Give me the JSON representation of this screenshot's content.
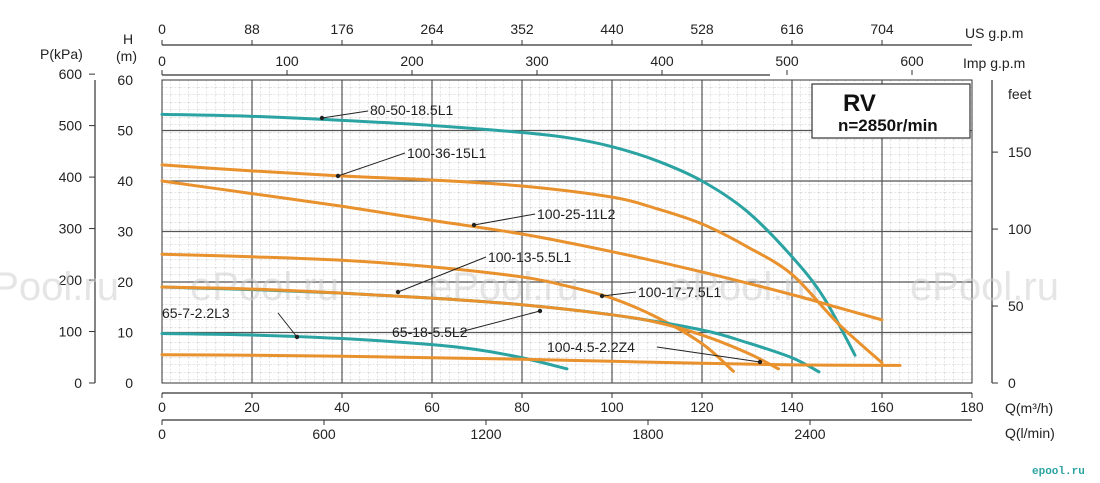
{
  "chart_data": {
    "type": "line",
    "title": "RV",
    "subtitle": "n=2850r/min",
    "x_axes": {
      "bottom_main": {
        "label": "Q(m³/h)",
        "range": [
          0,
          180
        ],
        "ticks": [
          "0",
          "20",
          "40",
          "60",
          "80",
          "100",
          "120",
          "140",
          "160",
          "180"
        ]
      },
      "bottom_lmin": {
        "label": "Q(l/min)",
        "ticks": [
          "0",
          "600",
          "1200",
          "1800",
          "2400"
        ]
      },
      "top_us": {
        "label": "US g.p.m",
        "ticks": [
          "0",
          "88",
          "176",
          "264",
          "352",
          "440",
          "528",
          "616",
          "704"
        ]
      },
      "top_imp": {
        "label": "Imp g.p.m",
        "ticks": [
          "0",
          "100",
          "200",
          "300",
          "400",
          "500",
          "600"
        ]
      }
    },
    "y_axes": {
      "head_m": {
        "label_top": "H",
        "label_bottom": "(m)",
        "range": [
          0,
          60
        ],
        "ticks": [
          "0",
          "10",
          "20",
          "30",
          "40",
          "50",
          "60"
        ]
      },
      "pressure_kpa": {
        "label": "P(kPa)",
        "ticks": [
          "0",
          "100",
          "200",
          "300",
          "400",
          "500",
          "600"
        ]
      },
      "feet": {
        "label": "feet",
        "ticks": [
          "0",
          "50",
          "100",
          "150"
        ]
      }
    },
    "grid": true,
    "series": [
      {
        "name": "80-50-18.5L1",
        "color": "#2ba3a3",
        "x": [
          0,
          20,
          40,
          60,
          80,
          90,
          100,
          110,
          120,
          130,
          140,
          147,
          154
        ],
        "y": [
          53.2,
          52.8,
          52,
          51,
          49.6,
          48.6,
          46.8,
          44,
          40,
          34,
          25,
          17,
          5.5
        ]
      },
      {
        "name": "100-36-15L1",
        "color": "#e8912d",
        "x": [
          0,
          20,
          40,
          60,
          80,
          100,
          110,
          120,
          130,
          140,
          150,
          160
        ],
        "y": [
          43.2,
          42,
          41,
          40.2,
          39,
          36.8,
          34.5,
          31.5,
          27,
          21.5,
          12,
          4
        ]
      },
      {
        "name": "100-25-11L2",
        "color": "#e8912d",
        "x": [
          0,
          20,
          40,
          60,
          80,
          100,
          120,
          140,
          150,
          160
        ],
        "y": [
          40,
          37.5,
          35,
          32.2,
          29.5,
          26,
          22,
          17.5,
          15,
          12.5
        ]
      },
      {
        "name": "100-13-5.5L1",
        "color": "#e8912d",
        "x": [
          0,
          20,
          40,
          60,
          80,
          90,
          100,
          110,
          120,
          127
        ],
        "y": [
          25.5,
          25,
          24.3,
          23,
          21,
          19.2,
          16.8,
          13,
          7.8,
          2.3
        ]
      },
      {
        "name": "100-17-7.5L1",
        "color": "#2ba3a3",
        "x": [
          0,
          20,
          40,
          60,
          80,
          100,
          120,
          130,
          140,
          146
        ],
        "y": [
          19,
          18.5,
          17.8,
          16.8,
          15.5,
          13.5,
          10.5,
          8,
          5,
          2.2
        ]
      },
      {
        "name": "65-18-5.5L2",
        "color": "#e8912d",
        "x": [
          0,
          20,
          40,
          60,
          80,
          100,
          110,
          120,
          130,
          137
        ],
        "y": [
          19,
          18.6,
          17.8,
          16.8,
          15.5,
          13.5,
          12,
          9.5,
          6,
          2.8
        ]
      },
      {
        "name": "65-7-2.2L3",
        "color": "#2ba3a3",
        "x": [
          0,
          20,
          40,
          60,
          70,
          80,
          90
        ],
        "y": [
          9.8,
          9.5,
          8.8,
          7.6,
          6.6,
          5,
          2.8
        ]
      },
      {
        "name": "100-4.5-2.2Z4",
        "color": "#e8912d",
        "x": [
          0,
          20,
          40,
          60,
          80,
          100,
          120,
          140,
          160,
          164
        ],
        "y": [
          5.6,
          5.5,
          5.3,
          5,
          4.7,
          4.3,
          3.9,
          3.6,
          3.5,
          3.5
        ]
      }
    ]
  },
  "watermark": "ePool.ru",
  "logo_text": "epool.ru"
}
